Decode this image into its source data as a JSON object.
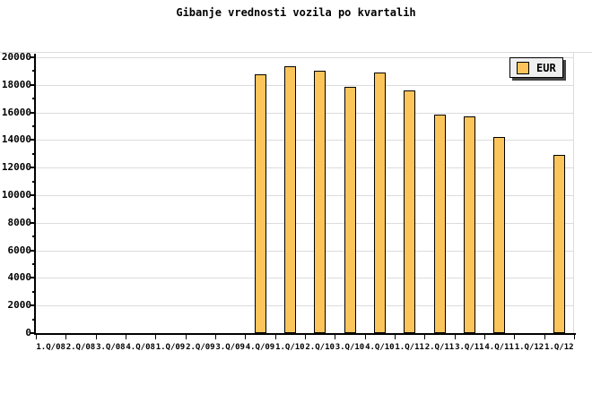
{
  "title": "Gibanje vrednosti vozila po kvartalih",
  "legend": {
    "label": "EUR"
  },
  "colors": {
    "background": "#FFFFFF",
    "text": "#000000",
    "bar_fill": "#FCC55C",
    "bar_border": "#000000",
    "grid": "#DCDCDC",
    "axis": "#000000",
    "frame_rule": "#DCDCDC",
    "legend_bg": "#EFEFEF",
    "legend_border": "#000000",
    "legend_shadow": "#444444"
  },
  "chart_data": {
    "type": "bar",
    "title": "Gibanje vrednosti vozila po kvartalih",
    "xlabel": "",
    "ylabel": "",
    "categories": [
      "1.Q/08",
      "2.Q/08",
      "3.Q/08",
      "4.Q/08",
      "1.Q/09",
      "2.Q/09",
      "3.Q/09",
      "4.Q/09",
      "1.Q/10",
      "2.Q/10",
      "3.Q/10",
      "4.Q/10",
      "1.Q/11",
      "2.Q/11",
      "3.Q/11",
      "4.Q/11",
      "1.Q/12",
      "1.Q/12"
    ],
    "series": [
      {
        "name": "EUR",
        "values": [
          null,
          null,
          null,
          null,
          null,
          null,
          null,
          18750,
          19350,
          19050,
          17850,
          18900,
          17600,
          15850,
          15700,
          14250,
          null,
          12950
        ]
      }
    ],
    "ylim": [
      0,
      20000
    ],
    "y_major_tick_step": 2000,
    "y_minor_tick_step": 1000,
    "y_tick_labels": [
      "0",
      "2000",
      "4000",
      "6000",
      "8000",
      "10000",
      "12000",
      "14000",
      "16000",
      "18000",
      "20000"
    ],
    "grid": "horizontal-major-only",
    "legend_position": "top-right"
  }
}
